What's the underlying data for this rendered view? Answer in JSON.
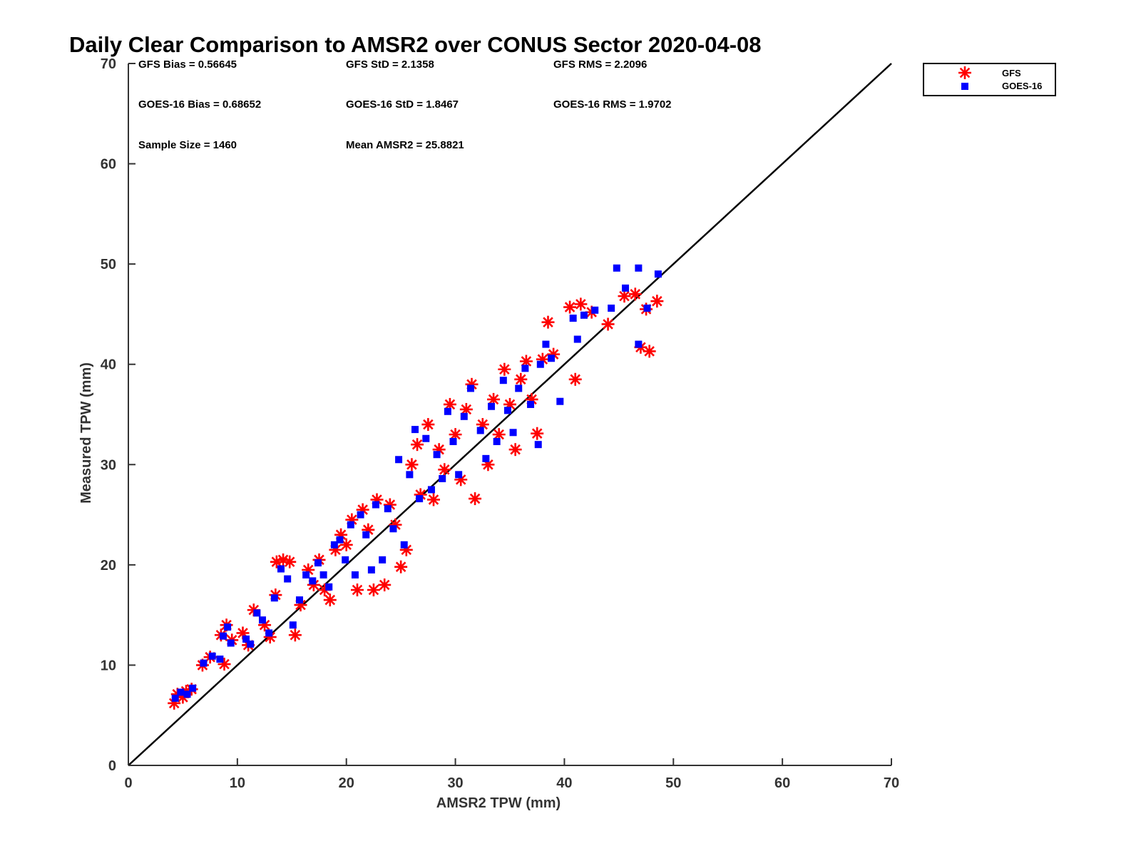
{
  "chart_data": {
    "type": "scatter",
    "title": "Daily Clear Comparison to AMSR2 over CONUS Sector 2020-04-08",
    "xlabel": "AMSR2 TPW (mm)",
    "ylabel": "Measured TPW (mm)",
    "xlim": [
      0,
      70
    ],
    "ylim": [
      0,
      70
    ],
    "xticks": [
      "0",
      "10",
      "20",
      "30",
      "40",
      "50",
      "60",
      "70"
    ],
    "yticks": [
      "0",
      "10",
      "20",
      "30",
      "40",
      "50",
      "60",
      "70"
    ],
    "grid": false,
    "legend_position": "outside-top-right",
    "reference_line": {
      "type": "1:1",
      "from": [
        0,
        0
      ],
      "to": [
        70,
        70
      ],
      "color": "#000000"
    },
    "stats": [
      [
        "GFS Bias = 0.56645",
        "GFS StD = 2.1358",
        "GFS RMS = 2.2096"
      ],
      [
        "GOES-16 Bias = 0.68652",
        "GOES-16 StD = 1.8467",
        "GOES-16 RMS = 1.9702"
      ],
      [
        "Sample Size = 1460",
        "Mean AMSR2 = 25.8821"
      ]
    ],
    "series": [
      {
        "name": "GFS",
        "marker": "asterisk",
        "color": "#ff0000",
        "points": [
          [
            4.2,
            6.2
          ],
          [
            4.5,
            7.1
          ],
          [
            5.0,
            6.8
          ],
          [
            5.3,
            7.4
          ],
          [
            5.8,
            7.6
          ],
          [
            6.8,
            10.0
          ],
          [
            7.5,
            10.8
          ],
          [
            8.5,
            13.0
          ],
          [
            8.8,
            10.1
          ],
          [
            9.0,
            14.0
          ],
          [
            9.5,
            12.5
          ],
          [
            10.5,
            13.2
          ],
          [
            11.0,
            12.0
          ],
          [
            11.5,
            15.5
          ],
          [
            12.5,
            14.0
          ],
          [
            13.0,
            12.8
          ],
          [
            13.5,
            17.0
          ],
          [
            13.6,
            20.3
          ],
          [
            14.2,
            20.5
          ],
          [
            14.8,
            20.3
          ],
          [
            15.3,
            13.0
          ],
          [
            15.8,
            16.0
          ],
          [
            16.5,
            19.5
          ],
          [
            17.0,
            18.0
          ],
          [
            17.5,
            20.5
          ],
          [
            18.0,
            17.5
          ],
          [
            18.5,
            16.5
          ],
          [
            19.0,
            21.5
          ],
          [
            19.5,
            23.0
          ],
          [
            20.0,
            22.0
          ],
          [
            20.5,
            24.5
          ],
          [
            21.0,
            17.5
          ],
          [
            21.5,
            25.5
          ],
          [
            22.0,
            23.5
          ],
          [
            22.5,
            17.5
          ],
          [
            22.8,
            26.5
          ],
          [
            23.5,
            18.0
          ],
          [
            24.0,
            26.0
          ],
          [
            24.5,
            24.0
          ],
          [
            25.0,
            19.8
          ],
          [
            25.5,
            21.5
          ],
          [
            26.0,
            30.0
          ],
          [
            26.5,
            32.0
          ],
          [
            26.8,
            27.0
          ],
          [
            27.5,
            34.0
          ],
          [
            28.0,
            26.5
          ],
          [
            28.5,
            31.5
          ],
          [
            29.0,
            29.5
          ],
          [
            29.5,
            36.0
          ],
          [
            30.0,
            33.0
          ],
          [
            30.5,
            28.5
          ],
          [
            31.0,
            35.5
          ],
          [
            31.5,
            38.0
          ],
          [
            31.8,
            26.6
          ],
          [
            32.5,
            34.0
          ],
          [
            33.0,
            30.0
          ],
          [
            33.5,
            36.5
          ],
          [
            34.0,
            33.0
          ],
          [
            34.5,
            39.5
          ],
          [
            35.0,
            36.0
          ],
          [
            35.5,
            31.5
          ],
          [
            36.0,
            38.5
          ],
          [
            36.5,
            40.3
          ],
          [
            37.0,
            36.5
          ],
          [
            37.5,
            33.1
          ],
          [
            38.0,
            40.5
          ],
          [
            38.5,
            44.2
          ],
          [
            39.0,
            41.0
          ],
          [
            40.5,
            45.7
          ],
          [
            41.0,
            38.5
          ],
          [
            41.5,
            46.0
          ],
          [
            42.5,
            45.2
          ],
          [
            44.0,
            44.0
          ],
          [
            45.5,
            46.8
          ],
          [
            46.5,
            47.0
          ],
          [
            47.0,
            41.7
          ],
          [
            47.8,
            41.3
          ],
          [
            47.5,
            45.5
          ],
          [
            48.5,
            46.3
          ]
        ]
      },
      {
        "name": "GOES-16",
        "marker": "square",
        "color": "#0000ff",
        "points": [
          [
            4.3,
            6.7
          ],
          [
            4.8,
            7.3
          ],
          [
            5.4,
            7.1
          ],
          [
            5.9,
            7.7
          ],
          [
            6.9,
            10.2
          ],
          [
            7.7,
            10.9
          ],
          [
            8.4,
            10.6
          ],
          [
            8.7,
            12.9
          ],
          [
            9.1,
            13.8
          ],
          [
            9.4,
            12.2
          ],
          [
            10.8,
            12.6
          ],
          [
            11.2,
            12.1
          ],
          [
            11.8,
            15.2
          ],
          [
            12.3,
            14.5
          ],
          [
            12.9,
            13.2
          ],
          [
            13.4,
            16.7
          ],
          [
            14.0,
            19.6
          ],
          [
            14.6,
            18.6
          ],
          [
            15.1,
            14.0
          ],
          [
            15.7,
            16.5
          ],
          [
            16.3,
            19.0
          ],
          [
            16.9,
            18.4
          ],
          [
            17.4,
            20.2
          ],
          [
            17.9,
            19.0
          ],
          [
            18.4,
            17.8
          ],
          [
            18.9,
            22.0
          ],
          [
            19.4,
            22.5
          ],
          [
            19.9,
            20.5
          ],
          [
            20.4,
            24.0
          ],
          [
            20.8,
            19.0
          ],
          [
            21.3,
            25.0
          ],
          [
            21.8,
            23.0
          ],
          [
            22.3,
            19.5
          ],
          [
            22.7,
            26.0
          ],
          [
            23.3,
            20.5
          ],
          [
            23.8,
            25.6
          ],
          [
            24.3,
            23.6
          ],
          [
            24.8,
            30.5
          ],
          [
            25.3,
            22.0
          ],
          [
            25.8,
            29.0
          ],
          [
            26.3,
            33.5
          ],
          [
            26.7,
            26.6
          ],
          [
            27.3,
            32.6
          ],
          [
            27.8,
            27.5
          ],
          [
            28.3,
            31.0
          ],
          [
            28.8,
            28.6
          ],
          [
            29.3,
            35.3
          ],
          [
            29.8,
            32.3
          ],
          [
            30.3,
            29.0
          ],
          [
            30.8,
            34.8
          ],
          [
            31.4,
            37.6
          ],
          [
            32.3,
            33.4
          ],
          [
            32.8,
            30.6
          ],
          [
            33.3,
            35.8
          ],
          [
            33.8,
            32.3
          ],
          [
            34.4,
            38.4
          ],
          [
            34.8,
            35.4
          ],
          [
            35.3,
            33.2
          ],
          [
            35.8,
            37.6
          ],
          [
            36.4,
            39.6
          ],
          [
            36.9,
            36.0
          ],
          [
            37.6,
            32.0
          ],
          [
            37.8,
            40.0
          ],
          [
            38.3,
            42.0
          ],
          [
            38.8,
            40.6
          ],
          [
            39.6,
            36.3
          ],
          [
            40.8,
            44.6
          ],
          [
            41.2,
            42.5
          ],
          [
            41.8,
            44.9
          ],
          [
            42.8,
            45.4
          ],
          [
            44.3,
            45.6
          ],
          [
            44.8,
            49.6
          ],
          [
            45.6,
            47.6
          ],
          [
            46.8,
            49.6
          ],
          [
            46.8,
            42.0
          ],
          [
            47.6,
            45.6
          ],
          [
            48.6,
            49.0
          ]
        ]
      }
    ]
  }
}
